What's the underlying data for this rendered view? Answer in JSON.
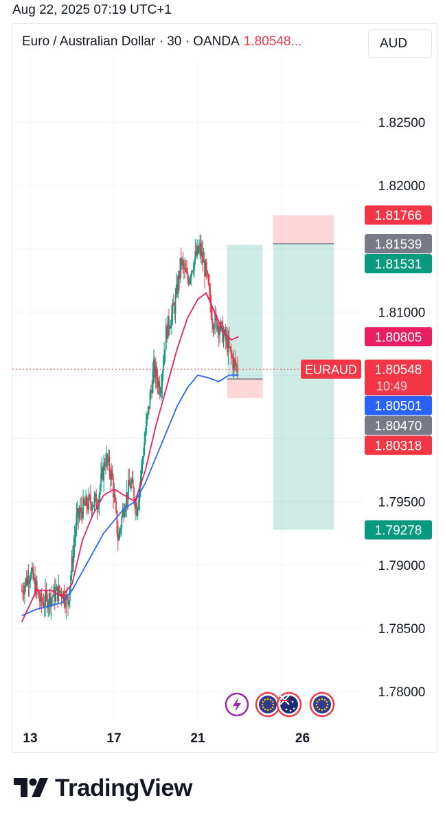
{
  "header": {
    "timestamp": "Aug 22, 2025 07:19 UTC+1"
  },
  "legend": {
    "symbol_text": "Euro / Australian Dollar · 30 · OANDA",
    "price_text": "1.80548..."
  },
  "currency_button": {
    "label": "AUD"
  },
  "branding": {
    "logo_text": "TradingView"
  },
  "colors": {
    "green": "#089981",
    "red": "#f23645",
    "ma_fast": "#e91e63",
    "ma_slow": "#2962ff",
    "grey_badge": "#787b86",
    "grid": "#f0f3fa"
  },
  "chart_data": {
    "type": "line",
    "title": "Euro / Australian Dollar · 30 · OANDA",
    "x_ticks": [
      "13",
      "17",
      "21",
      "26"
    ],
    "y_ticks": [
      "1.82500",
      "1.82000",
      "1.81000",
      "1.79500",
      "1.79000",
      "1.78500",
      "1.78000"
    ],
    "ylim": [
      1.7775,
      1.8295
    ],
    "grid": true,
    "series": [
      {
        "name": "EURAUD",
        "kind": "candlestick",
        "x": [
          12.6,
          13.0,
          13.5,
          14.0,
          14.5,
          14.8,
          15.2,
          15.5,
          15.9,
          16.2,
          16.6,
          16.9,
          17.2,
          17.5,
          17.8,
          18.1,
          18.5,
          18.9,
          19.2,
          19.5,
          19.9,
          20.2,
          20.5,
          20.8,
          21.1,
          21.4,
          21.7,
          22.0,
          22.4,
          22.7,
          22.95
        ],
        "y": [
          1.788,
          1.7895,
          1.787,
          1.7875,
          1.788,
          1.787,
          1.7935,
          1.7945,
          1.795,
          1.795,
          1.7985,
          1.797,
          1.792,
          1.795,
          1.7965,
          1.7945,
          1.8005,
          1.8055,
          1.804,
          1.8085,
          1.8105,
          1.814,
          1.8125,
          1.814,
          1.815,
          1.813,
          1.8095,
          1.809,
          1.8075,
          1.806,
          1.80548
        ]
      },
      {
        "name": "",
        "kind": "ma_fast",
        "x": [
          12.6,
          13.3,
          14.0,
          14.5,
          15.0,
          15.5,
          16.0,
          16.5,
          17.0,
          17.5,
          18.0,
          18.5,
          19.0,
          19.5,
          20.0,
          20.5,
          21.0,
          21.4,
          21.8,
          22.2,
          22.6,
          22.95
        ],
        "y": [
          1.7855,
          1.788,
          1.788,
          1.7875,
          1.7885,
          1.792,
          1.794,
          1.7955,
          1.796,
          1.7955,
          1.795,
          1.7975,
          1.801,
          1.804,
          1.807,
          1.8095,
          1.811,
          1.8115,
          1.81,
          1.8085,
          1.8078,
          1.80805
        ]
      },
      {
        "name": "",
        "kind": "ma_slow",
        "x": [
          12.6,
          13.3,
          14.0,
          14.5,
          15.0,
          15.5,
          16.0,
          16.5,
          17.0,
          17.5,
          18.0,
          18.5,
          19.0,
          19.5,
          20.0,
          20.5,
          21.0,
          21.5,
          22.0,
          22.5,
          22.95
        ],
        "y": [
          1.786,
          1.7865,
          1.7868,
          1.787,
          1.788,
          1.7895,
          1.791,
          1.7925,
          1.7935,
          1.7945,
          1.795,
          1.7965,
          1.7985,
          1.8005,
          1.8025,
          1.804,
          1.805,
          1.8048,
          1.8045,
          1.805,
          1.80501
        ]
      }
    ],
    "current_price_line": 1.80548,
    "positions": [
      {
        "x_start": 22.4,
        "x_end": 24.1,
        "entry": 1.8047,
        "target": 1.81531,
        "stop": 1.80318
      },
      {
        "x_start": 24.6,
        "x_end": 27.5,
        "entry": 1.81539,
        "target": 1.79278,
        "stop": 1.81766
      }
    ],
    "price_labels": [
      {
        "value": 1.81766,
        "text": "1.81766",
        "color": "#f23645"
      },
      {
        "value": 1.81539,
        "text": "1.81539",
        "color": "#787b86"
      },
      {
        "value": 1.81531,
        "text": "1.81531",
        "color": "#089981"
      },
      {
        "value": 1.80805,
        "text": "1.80805",
        "color": "#e91e63"
      },
      {
        "value": 1.80548,
        "text": "1.80548",
        "color": "#f23645"
      },
      {
        "value": 1.80501,
        "text": "1.80501",
        "color": "#2962ff"
      },
      {
        "value": 1.8047,
        "text": "1.80470",
        "color": "#787b86"
      },
      {
        "value": 1.80318,
        "text": "1.80318",
        "color": "#f23645"
      },
      {
        "value": 1.79278,
        "text": "1.79278",
        "color": "#089981"
      }
    ],
    "countdown": "10:49",
    "symbol_tag": "EURAUD",
    "event_markers": [
      "lightning-icon",
      "eu-flag-icon",
      "eu-flag-icon",
      "au-flag-icon",
      "eu-flag-icon"
    ]
  }
}
